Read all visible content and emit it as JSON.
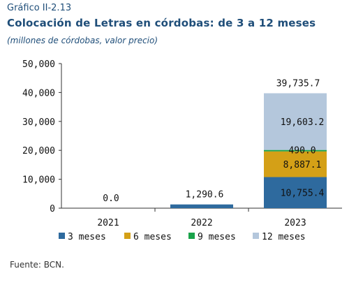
{
  "header": {
    "label": "Gráfico II-2.13",
    "title": "Colocación de Letras en córdobas: de 3 a 12 meses",
    "subtitle": "(millones de córdobas, valor precio)"
  },
  "source": "Fuente: BCN.",
  "chart_data": {
    "type": "bar",
    "stacked": true,
    "categories": [
      "2021",
      "2022",
      "2023"
    ],
    "ylim": [
      0,
      50000
    ],
    "yticks": [
      0,
      10000,
      20000,
      30000,
      40000,
      50000
    ],
    "ytick_labels": [
      "0",
      "10,000",
      "20,000",
      "30,000",
      "40,000",
      "50,000"
    ],
    "series": [
      {
        "name": "3 meses",
        "color": "#2e6a9e",
        "values": [
          0,
          1290.6,
          10755.4
        ],
        "labels": [
          "",
          "",
          "10,755.4"
        ]
      },
      {
        "name": "6 meses",
        "color": "#d4a017",
        "values": [
          0,
          0,
          8887.1
        ],
        "labels": [
          "",
          "",
          "8,887.1"
        ]
      },
      {
        "name": "9 meses",
        "color": "#1aa34a",
        "values": [
          0,
          0,
          490.0
        ],
        "labels": [
          "",
          "",
          "490.0"
        ]
      },
      {
        "name": "12 meses",
        "color": "#b4c7dc",
        "values": [
          0,
          0,
          19603.2
        ],
        "labels": [
          "",
          "",
          "19,603.2"
        ]
      }
    ],
    "totals": [
      0.0,
      1290.6,
      39735.7
    ],
    "total_labels": [
      "0.0",
      "1,290.6",
      "39,735.7"
    ],
    "legend_position": "bottom",
    "grid": false
  }
}
